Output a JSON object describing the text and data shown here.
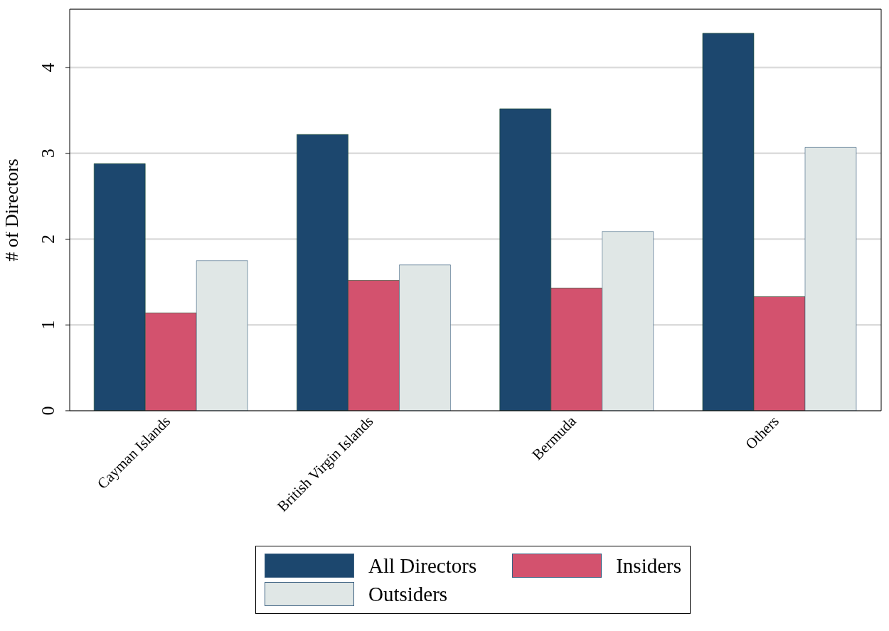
{
  "chart_data": {
    "type": "bar",
    "ylabel": "# of Directors",
    "categories": [
      "Cayman Islands",
      "British Virgin Islands",
      "Bermuda",
      "Others"
    ],
    "series": [
      {
        "name": "All Directors",
        "color": "#1c476e",
        "values": [
          2.88,
          3.22,
          3.52,
          4.4
        ]
      },
      {
        "name": "Insiders",
        "color": "#d3526e",
        "values": [
          1.14,
          1.52,
          1.43,
          1.33
        ]
      },
      {
        "name": "Outsiders",
        "color": "#e0e7e6",
        "values": [
          1.75,
          1.7,
          2.09,
          3.07
        ]
      }
    ],
    "ylim": [
      0,
      4.68
    ],
    "yticks": [
      0,
      1,
      2,
      3,
      4
    ],
    "grid": "y",
    "legend": "bottom"
  }
}
